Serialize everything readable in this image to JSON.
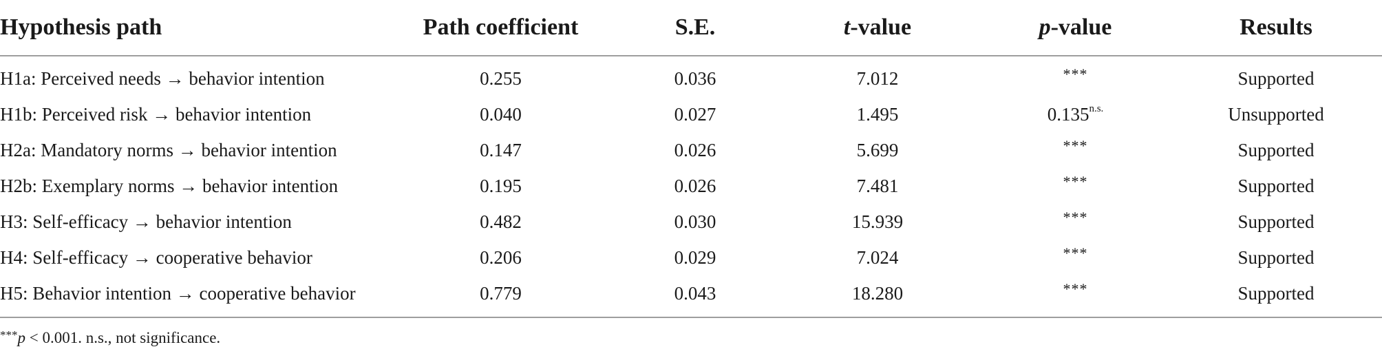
{
  "table": {
    "headers": {
      "hypothesis": "Hypothesis path",
      "coefficient": "Path coefficient",
      "se": "S.E.",
      "t_letter": "t",
      "t_rest": "-value",
      "p_letter": "p",
      "p_rest": "-value",
      "results": "Results"
    },
    "rows": [
      {
        "path": "H1a: Perceived needs → behavior intention",
        "coef": "0.255",
        "se": "0.036",
        "t": "7.012",
        "p": "***",
        "p_sup": "",
        "result": "Supported"
      },
      {
        "path": "H1b: Perceived risk → behavior intention",
        "coef": "0.040",
        "se": "0.027",
        "t": "1.495",
        "p": "0.135",
        "p_sup": "n.s.",
        "result": "Unsupported"
      },
      {
        "path": "H2a: Mandatory norms → behavior intention",
        "coef": "0.147",
        "se": "0.026",
        "t": "5.699",
        "p": "***",
        "p_sup": "",
        "result": "Supported"
      },
      {
        "path": "H2b: Exemplary norms → behavior intention",
        "coef": "0.195",
        "se": "0.026",
        "t": "7.481",
        "p": "***",
        "p_sup": "",
        "result": "Supported"
      },
      {
        "path": "H3: Self-efficacy → behavior intention",
        "coef": "0.482",
        "se": "0.030",
        "t": "15.939",
        "p": "***",
        "p_sup": "",
        "result": "Supported"
      },
      {
        "path": "H4: Self-efficacy → cooperative behavior",
        "coef": "0.206",
        "se": "0.029",
        "t": "7.024",
        "p": "***",
        "p_sup": "",
        "result": "Supported"
      },
      {
        "path": "H5: Behavior intention → cooperative behavior",
        "coef": "0.779",
        "se": "0.043",
        "t": "18.280",
        "p": "***",
        "p_sup": "",
        "result": "Supported"
      }
    ]
  },
  "note": {
    "stars": "***",
    "p_letter": "p",
    "text": " < 0.001. n.s., not significance."
  }
}
